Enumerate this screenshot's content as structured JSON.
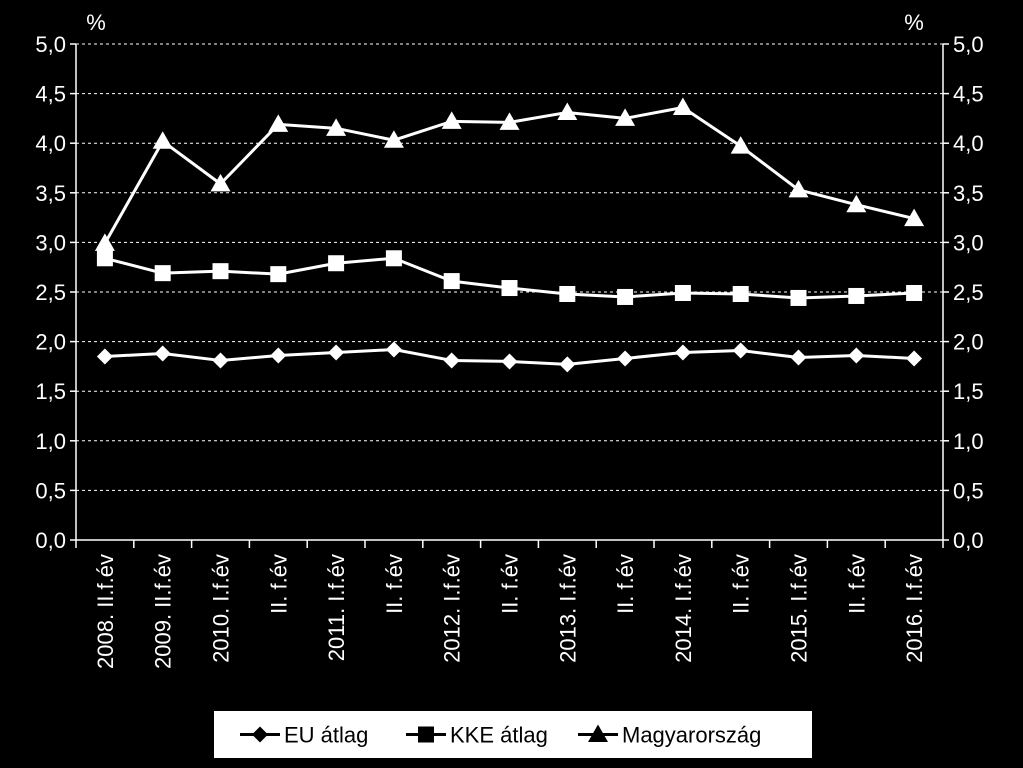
{
  "chart_data": {
    "type": "line",
    "title": "",
    "ylabel_left": "%",
    "ylabel_right": "%",
    "ylim": [
      0,
      5
    ],
    "yticks": [
      "0,0",
      "0,5",
      "1,0",
      "1,5",
      "2,0",
      "2,5",
      "3,0",
      "3,5",
      "4,0",
      "4,5",
      "5,0"
    ],
    "grid": "horizontal dashed",
    "legend_position": "bottom",
    "categories": [
      "2008. II.f.év",
      "2009. II.f.év",
      "2010. I.f.év",
      "II. f.év",
      "2011. I.f.év",
      "II. f.év",
      "2012. I.f.év",
      "II. f.év",
      "2013. I.f.év",
      "II. f.év",
      "2014. I.f.év",
      "II. f.év",
      "2015. I.f.év",
      "II. f.év",
      "2016. I.f.év"
    ],
    "series": [
      {
        "name": "EU átlag",
        "marker": "diamond",
        "values": [
          1.85,
          1.88,
          1.81,
          1.86,
          1.89,
          1.92,
          1.81,
          1.8,
          1.77,
          1.83,
          1.89,
          1.91,
          1.84,
          1.86,
          1.83
        ]
      },
      {
        "name": "KKE átlag",
        "marker": "square",
        "values": [
          2.84,
          2.69,
          2.71,
          2.68,
          2.79,
          2.84,
          2.61,
          2.54,
          2.48,
          2.45,
          2.49,
          2.48,
          2.44,
          2.46,
          2.49
        ]
      },
      {
        "name": "Magyarország",
        "marker": "triangle",
        "values": [
          2.99,
          4.02,
          3.59,
          4.19,
          4.15,
          4.03,
          4.22,
          4.21,
          4.31,
          4.25,
          4.36,
          3.97,
          3.53,
          3.38,
          3.24
        ]
      }
    ],
    "colors": {
      "background": "#000000",
      "line": "#ffffff",
      "grid": "#ffffff"
    }
  }
}
